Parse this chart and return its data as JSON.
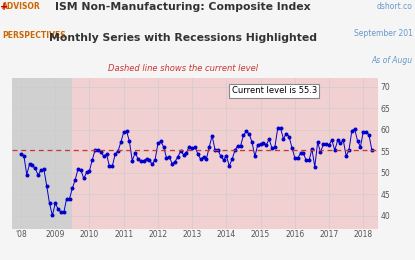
{
  "title1": "ISM Non-Manufacturing: Composite Index",
  "title2": "Monthly Series with Recessions Highlighted",
  "subtitle": "Dashed line shows the current level",
  "top_right_text1": "dshort.co",
  "top_right_text2": "September 201",
  "top_right_text3": "As of Augu",
  "logo_text1": "ADVISOR",
  "logo_text2": "PERSPECTIVES",
  "current_level": 55.3,
  "current_level_label": "Current level is 55.3",
  "ylabel_values": [
    70,
    65,
    60,
    55,
    50,
    45,
    40
  ],
  "xlim_start": 2007.75,
  "xlim_end": 2018.42,
  "ylim_bottom": 37,
  "ylim_top": 72,
  "recession_shade_start": 2007.75,
  "recession_shade_end": 2009.5,
  "expansion_shade_start": 2009.5,
  "expansion_shade_end": 2018.42,
  "bg_color": "#f5f5f5",
  "plot_bg_color": "#ffffff",
  "recession_color": "#d0d0d0",
  "expansion_color": "#f0d0d0",
  "line_color": "#0000cc",
  "marker_color": "#0000cc",
  "dashed_line_color": "#cc3333",
  "title_color": "#333333",
  "subtitle_color": "#cc3333",
  "data": [
    [
      2008.0,
      54.4
    ],
    [
      2008.083,
      54.0
    ],
    [
      2008.167,
      49.6
    ],
    [
      2008.25,
      52.0
    ],
    [
      2008.333,
      51.7
    ],
    [
      2008.417,
      51.0
    ],
    [
      2008.5,
      49.5
    ],
    [
      2008.583,
      50.6
    ],
    [
      2008.667,
      50.9
    ],
    [
      2008.75,
      47.0
    ],
    [
      2008.833,
      42.9
    ],
    [
      2008.917,
      40.1
    ],
    [
      2009.0,
      42.9
    ],
    [
      2009.083,
      41.6
    ],
    [
      2009.167,
      40.8
    ],
    [
      2009.25,
      40.8
    ],
    [
      2009.333,
      44.0
    ],
    [
      2009.417,
      44.0
    ],
    [
      2009.5,
      46.4
    ],
    [
      2009.583,
      48.4
    ],
    [
      2009.667,
      50.9
    ],
    [
      2009.75,
      50.6
    ],
    [
      2009.833,
      48.7
    ],
    [
      2009.917,
      50.1
    ],
    [
      2010.0,
      50.5
    ],
    [
      2010.083,
      53.0
    ],
    [
      2010.167,
      55.4
    ],
    [
      2010.25,
      55.4
    ],
    [
      2010.333,
      54.9
    ],
    [
      2010.417,
      53.8
    ],
    [
      2010.5,
      54.3
    ],
    [
      2010.583,
      51.5
    ],
    [
      2010.667,
      51.5
    ],
    [
      2010.75,
      54.3
    ],
    [
      2010.833,
      55.0
    ],
    [
      2010.917,
      57.1
    ],
    [
      2011.0,
      59.4
    ],
    [
      2011.083,
      59.7
    ],
    [
      2011.167,
      57.3
    ],
    [
      2011.25,
      52.8
    ],
    [
      2011.333,
      54.6
    ],
    [
      2011.417,
      53.3
    ],
    [
      2011.5,
      52.7
    ],
    [
      2011.583,
      52.8
    ],
    [
      2011.667,
      53.3
    ],
    [
      2011.75,
      52.9
    ],
    [
      2011.833,
      52.0
    ],
    [
      2011.917,
      53.0
    ],
    [
      2012.0,
      56.8
    ],
    [
      2012.083,
      57.3
    ],
    [
      2012.167,
      56.0
    ],
    [
      2012.25,
      53.5
    ],
    [
      2012.333,
      53.7
    ],
    [
      2012.417,
      52.1
    ],
    [
      2012.5,
      52.6
    ],
    [
      2012.583,
      53.7
    ],
    [
      2012.667,
      55.1
    ],
    [
      2012.75,
      54.2
    ],
    [
      2012.833,
      54.7
    ],
    [
      2012.917,
      56.1
    ],
    [
      2013.0,
      55.7
    ],
    [
      2013.083,
      56.0
    ],
    [
      2013.167,
      54.4
    ],
    [
      2013.25,
      53.1
    ],
    [
      2013.333,
      53.7
    ],
    [
      2013.417,
      53.2
    ],
    [
      2013.5,
      56.0
    ],
    [
      2013.583,
      58.6
    ],
    [
      2013.667,
      55.4
    ],
    [
      2013.75,
      55.4
    ],
    [
      2013.833,
      53.9
    ],
    [
      2013.917,
      53.0
    ],
    [
      2014.0,
      54.0
    ],
    [
      2014.083,
      51.6
    ],
    [
      2014.167,
      53.1
    ],
    [
      2014.25,
      55.2
    ],
    [
      2014.333,
      56.3
    ],
    [
      2014.417,
      56.3
    ],
    [
      2014.5,
      58.7
    ],
    [
      2014.583,
      59.6
    ],
    [
      2014.667,
      59.0
    ],
    [
      2014.75,
      57.1
    ],
    [
      2014.833,
      53.8
    ],
    [
      2014.917,
      56.5
    ],
    [
      2015.0,
      56.7
    ],
    [
      2015.083,
      56.9
    ],
    [
      2015.167,
      56.5
    ],
    [
      2015.25,
      57.8
    ],
    [
      2015.333,
      55.7
    ],
    [
      2015.417,
      56.0
    ],
    [
      2015.5,
      60.3
    ],
    [
      2015.583,
      60.3
    ],
    [
      2015.667,
      57.9
    ],
    [
      2015.75,
      59.1
    ],
    [
      2015.833,
      58.4
    ],
    [
      2015.917,
      55.8
    ],
    [
      2016.0,
      53.5
    ],
    [
      2016.083,
      53.4
    ],
    [
      2016.167,
      54.5
    ],
    [
      2016.25,
      54.5
    ],
    [
      2016.333,
      52.9
    ],
    [
      2016.417,
      52.9
    ],
    [
      2016.5,
      55.5
    ],
    [
      2016.583,
      51.4
    ],
    [
      2016.667,
      57.1
    ],
    [
      2016.75,
      54.8
    ],
    [
      2016.833,
      56.6
    ],
    [
      2016.917,
      56.6
    ],
    [
      2017.0,
      56.5
    ],
    [
      2017.083,
      57.6
    ],
    [
      2017.167,
      55.2
    ],
    [
      2017.25,
      57.5
    ],
    [
      2017.333,
      56.9
    ],
    [
      2017.417,
      57.5
    ],
    [
      2017.5,
      53.9
    ],
    [
      2017.583,
      55.3
    ],
    [
      2017.667,
      59.8
    ],
    [
      2017.75,
      60.1
    ],
    [
      2017.833,
      57.4
    ],
    [
      2017.917,
      56.0
    ],
    [
      2018.0,
      59.5
    ],
    [
      2018.083,
      59.5
    ],
    [
      2018.167,
      58.8
    ],
    [
      2018.25,
      55.3
    ]
  ]
}
